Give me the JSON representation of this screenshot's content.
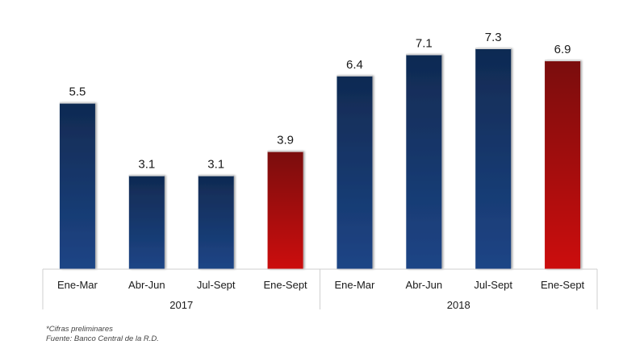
{
  "chart_data": {
    "type": "bar",
    "categories": [
      "Ene-Mar",
      "Abr-Jun",
      "Jul-Sept",
      "Ene-Sept",
      "Ene-Mar",
      "Abr-Jun",
      "Jul-Sept",
      "Ene-Sept"
    ],
    "groups": [
      {
        "label": "2017",
        "start": 0,
        "count": 4
      },
      {
        "label": "2018",
        "start": 4,
        "count": 4
      }
    ],
    "values": [
      5.5,
      3.1,
      3.1,
      3.9,
      6.4,
      7.1,
      7.3,
      6.9
    ],
    "highlight": [
      false,
      false,
      false,
      true,
      false,
      false,
      false,
      true
    ],
    "data_labels": [
      "5.5",
      "3.1",
      "3.1",
      "3.9",
      "6.4",
      "7.1",
      "7.3",
      "6.9"
    ],
    "ylim": [
      0,
      7.3
    ],
    "grid": false,
    "colors": {
      "bar_top": "#102a52",
      "bar_bottom": "#1d4586",
      "highlight_top": "#7a0b0b",
      "highlight_bottom": "#cc0a0a",
      "label": "#1a1a1a",
      "axis_text": "#1a1a1a",
      "frame": "#cfcfcf"
    }
  },
  "notes": {
    "preliminary": "*Cifras preliminares",
    "source": "Fuente: Banco Central de la R.D."
  }
}
